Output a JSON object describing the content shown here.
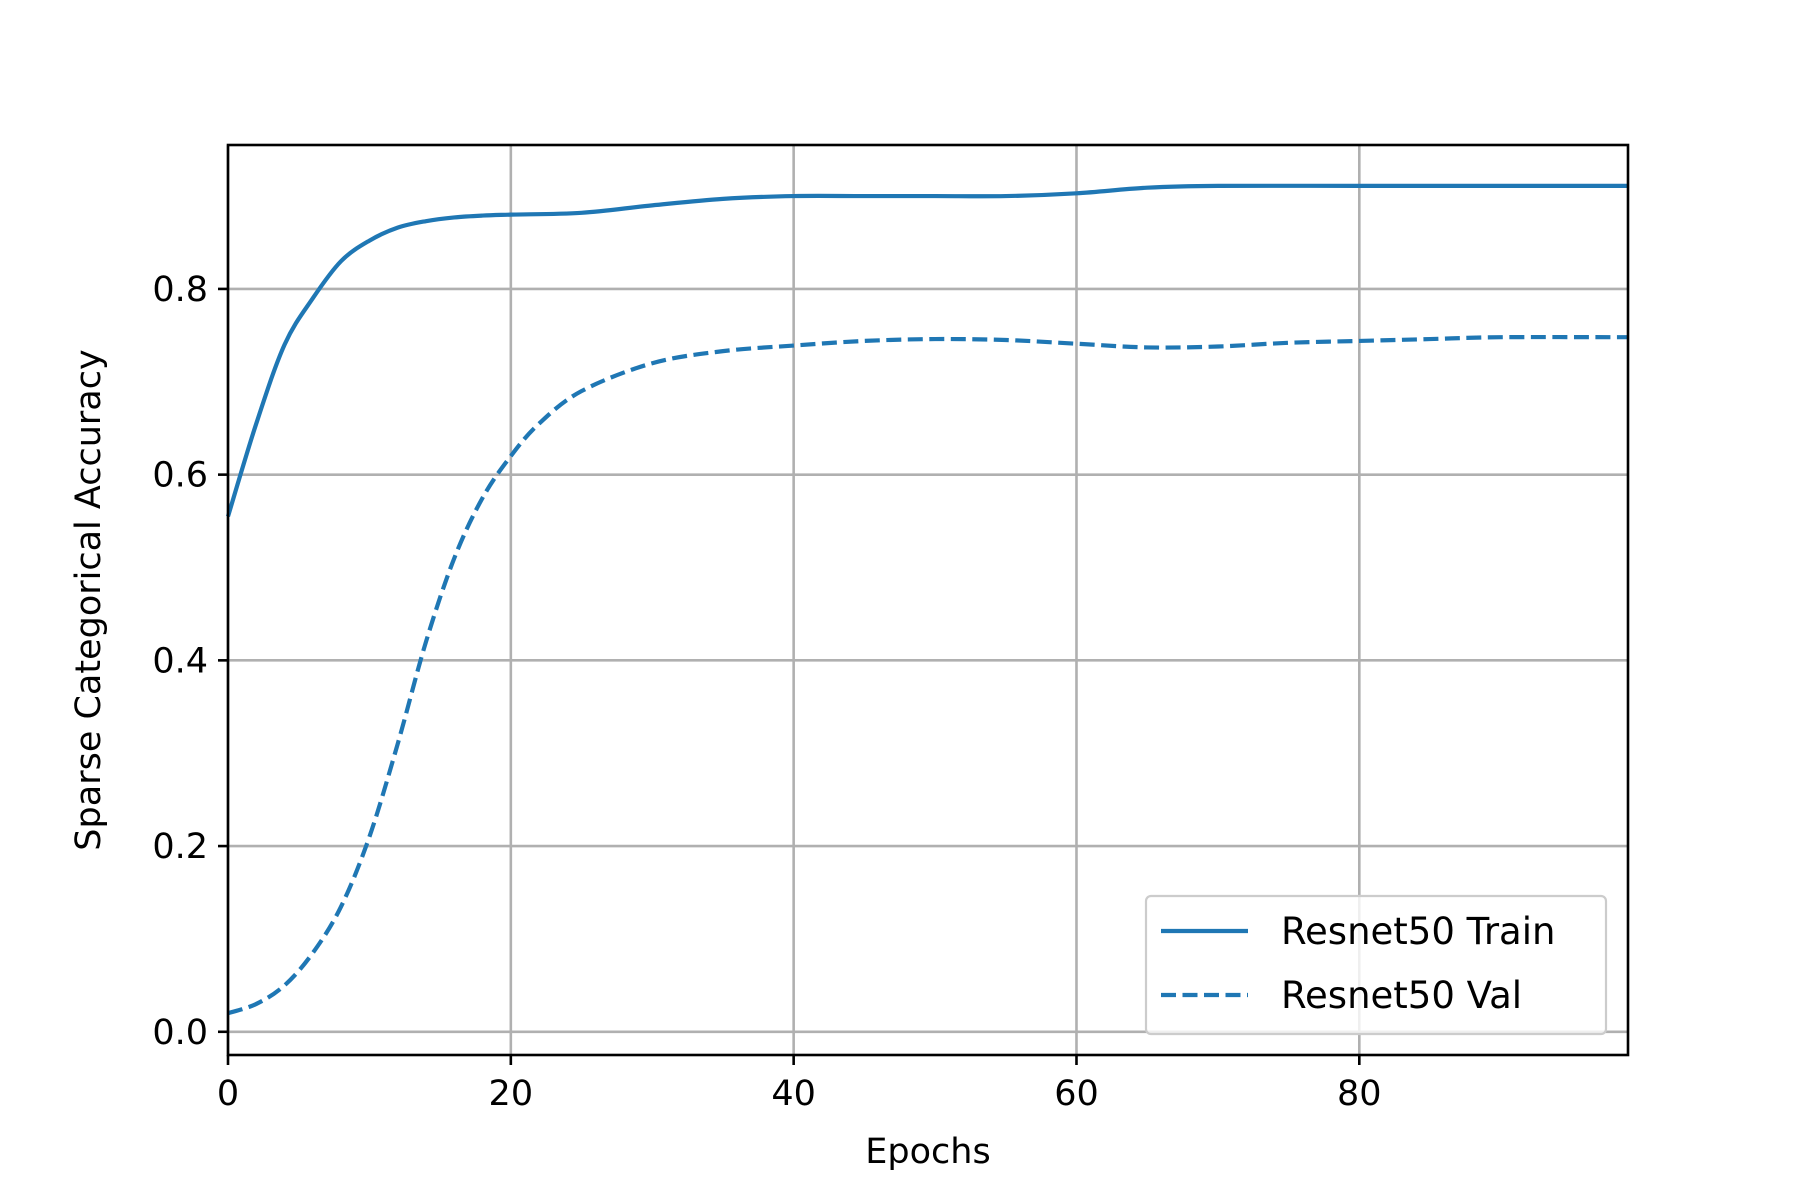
{
  "chart_data": {
    "type": "line",
    "title": "",
    "xlabel": "Epochs",
    "ylabel": "Sparse Categorical Accuracy",
    "xlim": [
      0,
      99
    ],
    "ylim": [
      -0.025,
      0.955
    ],
    "xticks": [
      0,
      20,
      40,
      60,
      80
    ],
    "yticks": [
      0.0,
      0.2,
      0.4,
      0.6,
      0.8
    ],
    "xtick_labels": [
      "0",
      "20",
      "40",
      "60",
      "80"
    ],
    "ytick_labels": [
      "0.0",
      "0.2",
      "0.4",
      "0.6",
      "0.8"
    ],
    "grid": true,
    "legend_position": "lower-right",
    "series": [
      {
        "name": "Resnet50 Train",
        "style": "solid",
        "color": "#1f77b4",
        "x": [
          0,
          2,
          4,
          6,
          8,
          10,
          12,
          14,
          16,
          18,
          20,
          25,
          30,
          35,
          40,
          45,
          50,
          55,
          60,
          65,
          70,
          80,
          90,
          99
        ],
        "y": [
          0.555,
          0.655,
          0.74,
          0.79,
          0.83,
          0.852,
          0.866,
          0.873,
          0.877,
          0.879,
          0.88,
          0.882,
          0.89,
          0.897,
          0.9,
          0.9,
          0.9,
          0.9,
          0.903,
          0.909,
          0.911,
          0.911,
          0.911,
          0.911
        ]
      },
      {
        "name": "Resnet50 Val",
        "style": "dashed",
        "color": "#1f77b4",
        "x": [
          0,
          2,
          4,
          6,
          8,
          10,
          12,
          14,
          16,
          18,
          20,
          22,
          25,
          30,
          35,
          40,
          45,
          50,
          55,
          60,
          65,
          70,
          75,
          80,
          85,
          90,
          99
        ],
        "y": [
          0.02,
          0.03,
          0.05,
          0.085,
          0.135,
          0.21,
          0.31,
          0.42,
          0.51,
          0.575,
          0.62,
          0.655,
          0.69,
          0.72,
          0.733,
          0.739,
          0.744,
          0.746,
          0.745,
          0.741,
          0.737,
          0.738,
          0.742,
          0.744,
          0.746,
          0.748,
          0.748
        ]
      }
    ]
  }
}
